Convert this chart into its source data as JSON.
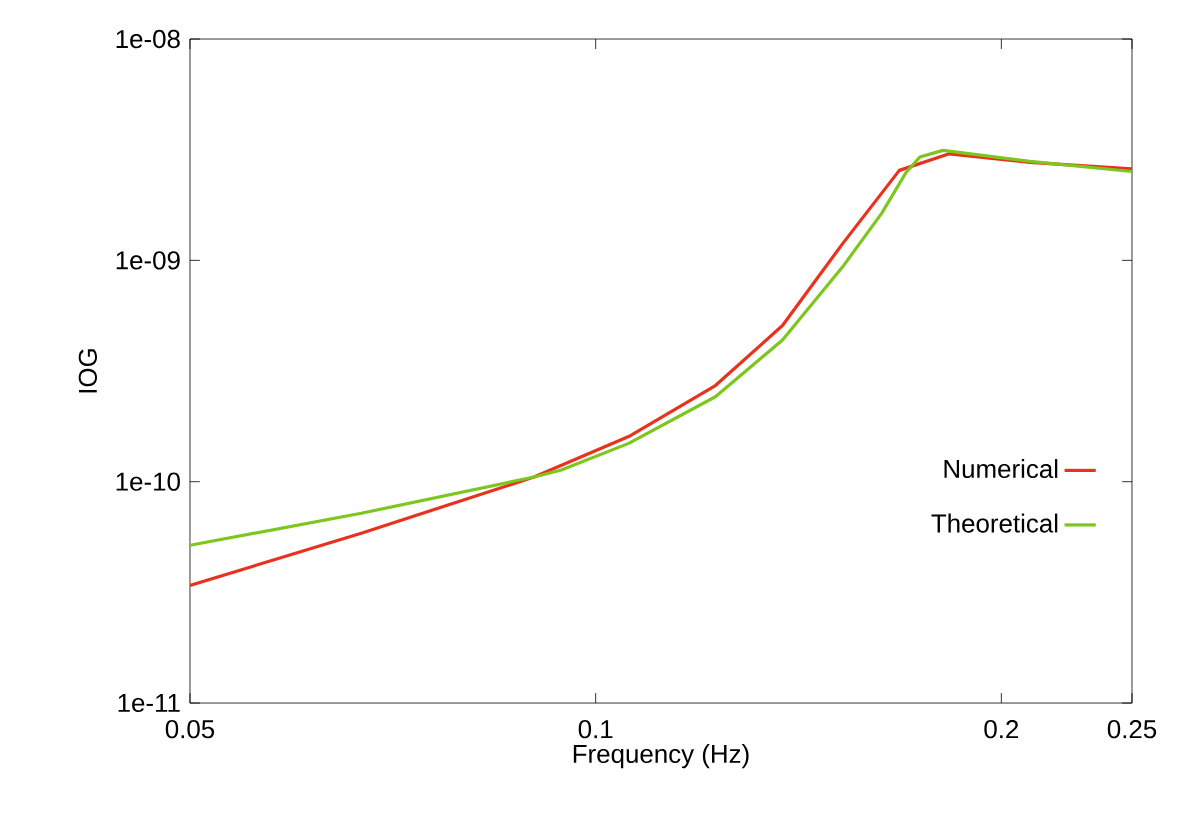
{
  "chart_data": {
    "type": "line",
    "xlabel": "Frequency (Hz)",
    "ylabel": "IOG",
    "log": "xy",
    "xlim": [
      0.05,
      0.25
    ],
    "ylim": [
      1e-11,
      1e-08
    ],
    "xticks": [
      0.05,
      0.1,
      0.2,
      0.25
    ],
    "yticks": [
      {
        "value": 1e-11,
        "label": "1e-11"
      },
      {
        "value": 1e-10,
        "label": "1e-10"
      },
      {
        "value": 1e-09,
        "label": "1e-09"
      },
      {
        "value": 1e-08,
        "label": "1e-08"
      }
    ],
    "grid": false,
    "legend": "right",
    "marker": "none",
    "line_style": "solid",
    "series": [
      {
        "name": "Numerical",
        "color": "#e8321e",
        "x": [
          0.05,
          0.067,
          0.09,
          0.1058,
          0.1227,
          0.1376,
          0.1525,
          0.168,
          0.183,
          0.21,
          0.25
        ],
        "values": [
          3.4e-11,
          5.85e-11,
          1.05e-10,
          1.6e-10,
          2.72e-10,
          5.08e-10,
          1.19e-09,
          2.55e-09,
          3.03e-09,
          2.77e-09,
          2.59e-09
        ]
      },
      {
        "name": "Theoretical",
        "color": "#7cc61e",
        "x": [
          0.05,
          0.067,
          0.09,
          0.0943,
          0.1058,
          0.1227,
          0.1376,
          0.1525,
          0.163,
          0.17,
          0.174,
          0.181,
          0.21,
          0.25
        ],
        "values": [
          5.16e-11,
          7.2e-11,
          1.05e-10,
          1.13e-10,
          1.49e-10,
          2.42e-10,
          4.37e-10,
          9.35e-10,
          1.63e-09,
          2.5e-09,
          2.93e-09,
          3.14e-09,
          2.8e-09,
          2.52e-09
        ]
      }
    ]
  }
}
